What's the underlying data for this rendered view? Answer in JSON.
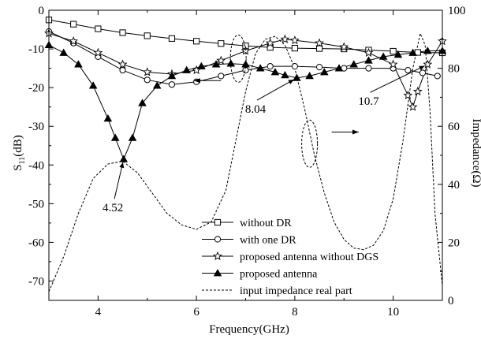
{
  "chart_data": {
    "type": "line",
    "xlabel": "Frequency(GHz)",
    "ylabel_left": {
      "main": "S",
      "sub": "11",
      "tail": "(dB)"
    },
    "ylabel_right": "Impedance(Ω)",
    "xlim": [
      3,
      11
    ],
    "ylim_left": [
      -75,
      0
    ],
    "ylim_right": [
      0,
      100
    ],
    "xticks": [
      4,
      6,
      8,
      10
    ],
    "yticks_left": [
      0,
      -10,
      -20,
      -30,
      -40,
      -50,
      -60,
      -70
    ],
    "yticks_right": [
      0,
      20,
      40,
      60,
      80,
      100
    ],
    "grid": false,
    "legend_position": "bottom-center",
    "series": [
      {
        "name": "without DR",
        "axis": "left",
        "marker": "square",
        "x": [
          3.0,
          3.5,
          4.0,
          4.5,
          5.0,
          5.5,
          6.0,
          6.5,
          7.0,
          7.5,
          8.0,
          8.5,
          9.0,
          9.5,
          10.0,
          10.5,
          11.0
        ],
        "y": [
          -2.5,
          -3.6,
          -4.8,
          -5.8,
          -6.6,
          -7.3,
          -8.0,
          -8.6,
          -9.2,
          -9.6,
          -9.8,
          -9.9,
          -10.0,
          -10.3,
          -10.6,
          -10.9,
          -11.0
        ]
      },
      {
        "name": "with one DR",
        "axis": "left",
        "marker": "circle",
        "x": [
          3.0,
          3.5,
          4.0,
          4.5,
          5.0,
          5.5,
          6.0,
          6.5,
          7.0,
          7.5,
          8.0,
          8.5,
          9.0,
          9.5,
          10.0,
          10.3,
          10.6,
          10.9
        ],
        "y": [
          -5.5,
          -8.5,
          -12.0,
          -15.5,
          -18.0,
          -19.2,
          -18.5,
          -17.0,
          -15.5,
          -14.5,
          -14.5,
          -14.7,
          -15.0,
          -15.0,
          -15.0,
          -15.5,
          -16.2,
          -17.0
        ]
      },
      {
        "name": "proposed antenna without DGS",
        "axis": "left",
        "marker": "star",
        "x": [
          3.0,
          3.5,
          4.0,
          4.5,
          5.0,
          5.5,
          6.0,
          6.5,
          7.0,
          7.5,
          7.8,
          8.0,
          8.5,
          9.0,
          9.5,
          10.0,
          10.3,
          10.4,
          10.5,
          10.7,
          11.0
        ],
        "y": [
          -6.0,
          -8.0,
          -11.0,
          -14.0,
          -16.0,
          -16.5,
          -15.5,
          -13.0,
          -10.5,
          -8.5,
          -7.5,
          -7.8,
          -8.5,
          -9.5,
          -11.0,
          -14.0,
          -22.0,
          -25.0,
          -21.0,
          -14.0,
          -8.0
        ]
      },
      {
        "name": "proposed antenna",
        "axis": "left",
        "marker": "triangle",
        "x": [
          3.0,
          3.3,
          3.6,
          3.9,
          4.2,
          4.35,
          4.52,
          4.7,
          4.9,
          5.2,
          5.5,
          5.8,
          6.1,
          6.4,
          6.7,
          7.0,
          7.3,
          7.6,
          7.8,
          8.04,
          8.3,
          8.6,
          8.9,
          9.2,
          9.5,
          9.8,
          10.1,
          10.4,
          10.7,
          11.0
        ],
        "y": [
          -9.0,
          -11.0,
          -14.0,
          -19.5,
          -28.0,
          -33.0,
          -38.5,
          -33.0,
          -24.0,
          -19.5,
          -17.0,
          -15.5,
          -14.5,
          -14.0,
          -13.8,
          -14.0,
          -15.0,
          -16.0,
          -16.8,
          -17.5,
          -17.0,
          -16.0,
          -15.0,
          -14.0,
          -13.0,
          -12.0,
          -11.5,
          -11.0,
          -10.5,
          -10.5
        ]
      },
      {
        "name": "input impedance real part",
        "axis": "right",
        "marker": "none",
        "dashed": true,
        "x": [
          3.0,
          3.3,
          3.6,
          3.9,
          4.2,
          4.5,
          4.8,
          5.1,
          5.4,
          5.7,
          6.0,
          6.3,
          6.6,
          6.8,
          7.0,
          7.2,
          7.4,
          7.6,
          7.8,
          8.0,
          8.2,
          8.4,
          8.6,
          8.8,
          9.0,
          9.2,
          9.4,
          9.6,
          9.8,
          10.0,
          10.2,
          10.4,
          10.55,
          10.65,
          10.75,
          10.85,
          11.0
        ],
        "y": [
          3.0,
          15.0,
          30.0,
          42.0,
          47.0,
          48.0,
          44.0,
          37.0,
          30.0,
          26.0,
          24.5,
          27.0,
          38.0,
          55.0,
          72.0,
          85.0,
          90.0,
          91.0,
          88.0,
          80.0,
          66.0,
          50.0,
          37.0,
          27.0,
          21.0,
          18.0,
          17.5,
          19.0,
          24.0,
          35.0,
          55.0,
          80.0,
          92.0,
          88.0,
          65.0,
          30.0,
          5.0
        ]
      }
    ],
    "annotations": [
      {
        "text": "4.52",
        "target": [
          4.52,
          -38.5
        ],
        "label_at": [
          4.3,
          -52.0
        ]
      },
      {
        "text": "8.04",
        "target": [
          8.04,
          -17.5
        ],
        "label_at": [
          7.2,
          -26.5
        ]
      },
      {
        "text": "10.7",
        "target": [
          10.7,
          -14.0
        ],
        "label_at": [
          9.5,
          -24.5
        ]
      }
    ],
    "axis_indicators": [
      {
        "points_to": "left",
        "ellipse_at": [
          6.85,
          -12.5
        ],
        "arrow_from": [
          6.5,
          -18.2
        ],
        "arrow_to": [
          5.95,
          -18.2
        ]
      },
      {
        "points_to": "right",
        "ellipse_at": [
          8.3,
          -34.5
        ],
        "arrow_from": [
          8.75,
          -31.5
        ],
        "arrow_to": [
          9.3,
          -31.5
        ]
      }
    ]
  }
}
